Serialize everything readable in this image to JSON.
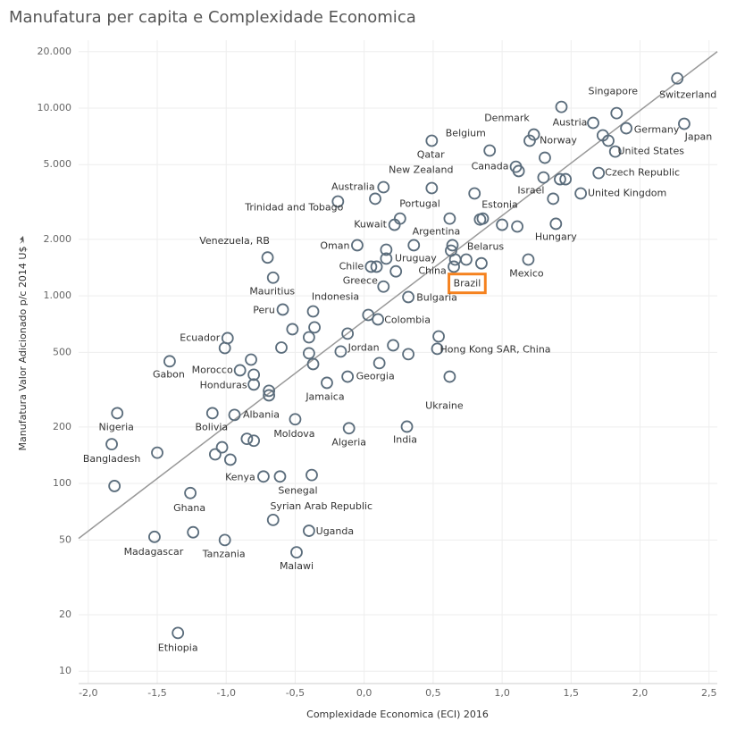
{
  "chart_data": {
    "type": "scatter",
    "title": "Manufatura per capita e Complexidade Economica",
    "x_label": "Complexidade Economica (ECI) 2016",
    "y_label": "Manufatura Valor Adicionado p/c 2014 U$",
    "xlim": [
      -2.07,
      2.56
    ],
    "ylim": [
      8.6,
      23000
    ],
    "log_y": true,
    "grid": true,
    "color": "#5b6d7c",
    "xticks": [
      {
        "value": -2,
        "label": "-2,0"
      },
      {
        "value": -1.5,
        "label": "-1,5"
      },
      {
        "value": -1,
        "label": "-1,0"
      },
      {
        "value": -0.5,
        "label": "-0,5"
      },
      {
        "value": 0,
        "label": "0,0"
      },
      {
        "value": 0.5,
        "label": "0,5"
      },
      {
        "value": 1,
        "label": "1,0"
      },
      {
        "value": 1.5,
        "label": "1,5"
      },
      {
        "value": 2,
        "label": "2,0"
      },
      {
        "value": 2.5,
        "label": "2,5"
      }
    ],
    "yticks": [
      {
        "value": 20000,
        "label": "20.000"
      },
      {
        "value": 10000,
        "label": "10.000"
      },
      {
        "value": 5000,
        "label": "5.000"
      },
      {
        "value": 2000,
        "label": "2.000"
      },
      {
        "value": 1000,
        "label": "1.000"
      },
      500,
      200,
      100,
      50,
      20,
      10
    ],
    "trendline": {
      "x": [
        -2.07,
        2.56
      ],
      "y": [
        51,
        20000
      ],
      "color": "#999999"
    },
    "highlight": {
      "index": 31,
      "color": "#f5821f"
    },
    "labels": [
      "Switzerland",
      "Singapore",
      "Japan",
      "Germany",
      "Austria",
      "Denmark",
      "United States",
      "Norway",
      "Belgium",
      "Qatar",
      "Canada",
      "Czech Republic",
      "New Zealand",
      "Israel",
      "United Kingdom",
      "Australia",
      "Trinidad and Tobago",
      "Portugal",
      "Estonia",
      "Kuwait",
      "Argentina",
      "Hungary",
      "Venezuela, RB",
      "Oman",
      "Belarus",
      "Chile",
      "Uruguay",
      "China",
      "Mexico",
      "Mauritius",
      "Greece",
      "Brazil",
      "Indonesia",
      "Bulgaria",
      "Peru",
      "Colombia",
      "Ecuador",
      "Jordan",
      "Hong Kong SAR, China",
      "Gabon",
      "Morocco",
      "Georgia",
      "Honduras",
      "Jamaica",
      "Ukraine",
      "Albania",
      "Nigeria",
      "Bolivia",
      "Moldova",
      "India",
      "Algeria",
      "Bangladesh",
      "Kenya",
      "Senegal",
      "Ghana",
      "Syrian Arab Republic",
      "Uganda",
      "Madagascar",
      "Tanzania",
      "Malawi",
      "Ethiopia",
      null,
      null,
      null,
      null,
      null,
      null,
      null,
      null,
      null,
      null,
      null,
      null,
      null,
      null,
      null,
      null,
      null,
      null,
      null,
      null,
      null,
      null,
      null,
      null,
      null,
      null,
      null,
      null,
      null,
      null,
      null,
      null,
      null,
      null,
      null,
      null,
      null,
      null,
      null,
      null,
      null,
      null,
      null
    ],
    "x": [
      2.27,
      1.83,
      2.32,
      1.9,
      1.66,
      1.43,
      1.82,
      1.2,
      0.49,
      0.91,
      1.1,
      1.7,
      0.49,
      1.3,
      1.57,
      0.14,
      -0.19,
      0.08,
      0.86,
      0.22,
      0.62,
      1.39,
      -0.7,
      -0.05,
      0.64,
      0.05,
      0.16,
      0.65,
      1.19,
      -0.66,
      0.14,
      0.85,
      -0.37,
      0.32,
      -0.59,
      0.1,
      -0.99,
      -0.12,
      0.53,
      -1.41,
      -0.9,
      -0.12,
      -0.8,
      -0.27,
      0.62,
      -0.94,
      -1.79,
      -1.1,
      -0.5,
      0.31,
      -0.11,
      -1.83,
      -0.73,
      -0.61,
      -1.26,
      -0.66,
      -0.4,
      -1.52,
      -1.01,
      -0.49,
      -1.35,
      0.66,
      0.74,
      0.63,
      0.84,
      1.0,
      1.11,
      0.8,
      1.23,
      1.73,
      1.77,
      1.31,
      1.46,
      1.42,
      1.37,
      1.12,
      0.26,
      0.36,
      0.16,
      0.09,
      0.23,
      -1.01,
      -0.82,
      -0.8,
      -0.69,
      -0.69,
      -0.6,
      -0.52,
      -0.4,
      -0.36,
      -0.4,
      -0.37,
      -0.17,
      0.03,
      0.21,
      0.32,
      0.54,
      0.11,
      -1.03,
      -1.08,
      -0.97,
      -0.85,
      -0.8,
      -0.38,
      -1.24,
      -1.5,
      -1.81
    ],
    "y": [
      14400,
      9400,
      8250,
      7810,
      8340,
      10150,
      5870,
      6700,
      6700,
      5940,
      4870,
      4510,
      3750,
      4270,
      3510,
      3790,
      3180,
      3290,
      2580,
      2390,
      2580,
      2420,
      1600,
      1860,
      1860,
      1430,
      1580,
      1430,
      1560,
      1250,
      1120,
      1490,
      826,
      985,
      845,
      749,
      595,
      629,
      522,
      448,
      401,
      371,
      337,
      344,
      371,
      232,
      237,
      237,
      220,
      201,
      197,
      162,
      109,
      109,
      89,
      64,
      56,
      52,
      50,
      43,
      16,
      1560,
      1560,
      1740,
      2550,
      2390,
      2340,
      3510,
      7230,
      7160,
      6700,
      5440,
      4180,
      4180,
      3290,
      4620,
      2580,
      1860,
      1760,
      1430,
      1350,
      527,
      457,
      380,
      312,
      295,
      530,
      664,
      601,
      679,
      494,
      433,
      505,
      791,
      545,
      489,
      608,
      438,
      156,
      143,
      134,
      173,
      169,
      111,
      55,
      146,
      97
    ]
  }
}
